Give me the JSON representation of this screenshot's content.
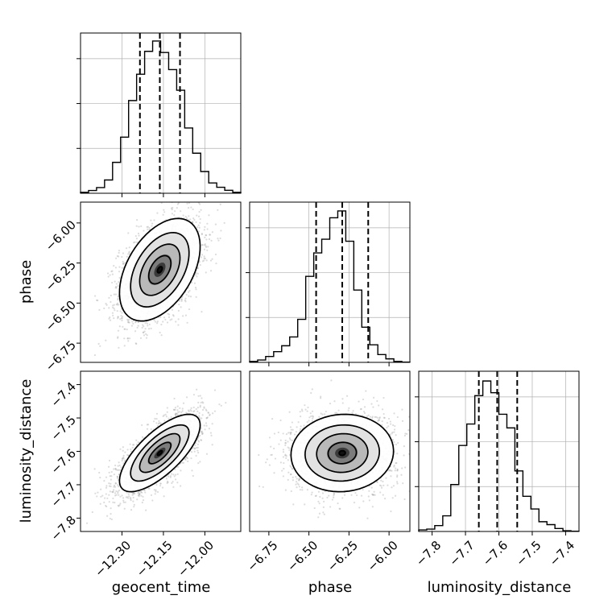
{
  "figure": {
    "type": "corner-plot",
    "params": [
      "geocent_time",
      "phase",
      "luminosity_distance"
    ],
    "colors": {
      "background": "#ffffff",
      "line": "#000000",
      "grid": "#b0b0b0",
      "scatter": "#9a9a9a",
      "density_dark": "#111111",
      "density_light": "#f4f4f4"
    }
  },
  "chart_data": [
    {
      "type": "histogram",
      "param": "geocent_time",
      "xlim": [
        -12.45,
        -11.87
      ],
      "bin_edges_start": -12.45,
      "bin_width": 0.029,
      "counts": [
        0.4,
        1.2,
        2.5,
        5.8,
        13.5,
        24.5,
        40.5,
        52.0,
        62.0,
        66.5,
        61.5,
        54.0,
        45.0,
        28.5,
        17.5,
        9.5,
        4.5,
        2.6,
        1.3,
        0.4
      ],
      "ymax": 70,
      "quantiles": [
        -12.235,
        -12.163,
        -12.09
      ],
      "xticks": [
        -12.3,
        -12.15,
        -12.0
      ],
      "xtick_labels": [
        "−12.30",
        "−12.15",
        "−12.00"
      ]
    },
    {
      "type": "histogram",
      "param": "phase",
      "xlim": [
        -6.87,
        -5.87
      ],
      "bin_edges_start": -6.87,
      "bin_width": 0.05,
      "counts": [
        0.5,
        1.2,
        3.0,
        5.5,
        8.5,
        13.0,
        22.0,
        44.0,
        56.0,
        63.0,
        74.0,
        77.5,
        62.0,
        37.0,
        18.0,
        9.0,
        4.0,
        1.8,
        0.5,
        0.1
      ],
      "ymax": 82,
      "quantiles": [
        -6.455,
        -6.292,
        -6.13
      ],
      "xticks": [
        -6.75,
        -6.5,
        -6.25,
        -6.0
      ],
      "xtick_labels": [
        "−6.75",
        "−6.50",
        "−6.25",
        "−6.00"
      ]
    },
    {
      "type": "histogram",
      "param": "luminosity_distance",
      "xlim": [
        -7.84,
        -7.36
      ],
      "bin_edges_start": -7.84,
      "bin_width": 0.024,
      "counts": [
        0.8,
        1.2,
        3.0,
        8.0,
        24.0,
        44.0,
        55.0,
        69.5,
        77.0,
        71.0,
        60.0,
        53.0,
        31.0,
        18.0,
        11.5,
        5.0,
        3.5,
        1.5,
        0.4,
        0.1
      ],
      "ymax": 82,
      "quantiles": [
        -7.66,
        -7.605,
        -7.545
      ],
      "xticks": [
        -7.8,
        -7.7,
        -7.6,
        -7.5,
        -7.4
      ],
      "xtick_labels": [
        "−7.8",
        "−7.7",
        "−7.6",
        "−7.5",
        "−7.4"
      ]
    },
    {
      "type": "2d-density",
      "x_param": "geocent_time",
      "y_param": "phase",
      "xlim": [
        -12.45,
        -11.87
      ],
      "ylim": [
        -6.87,
        -5.87
      ],
      "mean": [
        -12.163,
        -6.292
      ],
      "std": [
        0.073,
        0.16
      ],
      "correlation": 0.45,
      "yticks": [
        -6.75,
        -6.5,
        -6.25,
        -6.0
      ],
      "ytick_labels": [
        "−6.75",
        "−6.50",
        "−6.25",
        "−6.00"
      ],
      "ylabel": "phase"
    },
    {
      "type": "2d-density",
      "x_param": "geocent_time",
      "y_param": "luminosity_distance",
      "xlim": [
        -12.45,
        -11.87
      ],
      "ylim": [
        -7.84,
        -7.36
      ],
      "mean": [
        -12.163,
        -7.605
      ],
      "std": [
        0.073,
        0.058
      ],
      "correlation": 0.72,
      "xticks": [
        -12.3,
        -12.15,
        -12.0
      ],
      "xtick_labels": [
        "−12.30",
        "−12.15",
        "−12.00"
      ],
      "yticks": [
        -7.8,
        -7.7,
        -7.6,
        -7.5,
        -7.4
      ],
      "ytick_labels": [
        "−7.8",
        "−7.7",
        "−7.6",
        "−7.5",
        "−7.4"
      ],
      "xlabel": "geocent_time",
      "ylabel": "luminosity_distance"
    },
    {
      "type": "2d-density",
      "x_param": "phase",
      "y_param": "luminosity_distance",
      "xlim": [
        -6.87,
        -5.87
      ],
      "ylim": [
        -7.84,
        -7.36
      ],
      "mean": [
        -6.292,
        -7.605
      ],
      "std": [
        0.16,
        0.058
      ],
      "correlation": 0.05,
      "xticks": [
        -6.75,
        -6.5,
        -6.25,
        -6.0
      ],
      "xtick_labels": [
        "−6.75",
        "−6.50",
        "−6.25",
        "−6.00"
      ],
      "xlabel": "phase"
    }
  ]
}
